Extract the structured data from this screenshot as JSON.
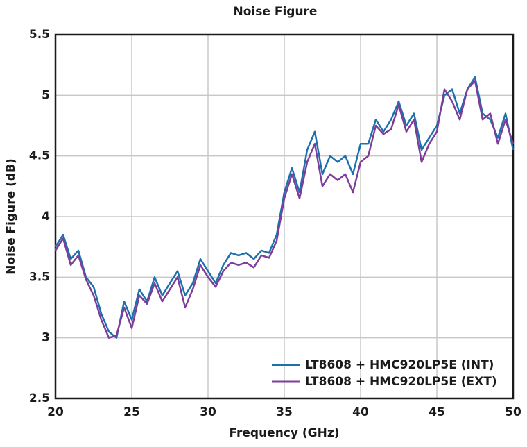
{
  "chart_data": {
    "type": "line",
    "title": "Noise Figure",
    "xlabel": "Frequency (GHz)",
    "ylabel": "Noise Figure (dB)",
    "x": [
      20,
      20.5,
      21,
      21.5,
      22,
      22.5,
      23,
      23.5,
      24,
      24.5,
      25,
      25.5,
      26,
      26.5,
      27,
      27.5,
      28,
      28.5,
      29,
      29.5,
      30,
      30.5,
      31,
      31.5,
      32,
      32.5,
      33,
      33.5,
      34,
      34.5,
      35,
      35.5,
      36,
      36.5,
      37,
      37.5,
      38,
      38.5,
      39,
      39.5,
      40,
      40.5,
      41,
      41.5,
      42,
      42.5,
      43,
      43.5,
      44,
      44.5,
      45,
      45.5,
      46,
      46.5,
      47,
      47.5,
      48,
      48.5,
      49,
      49.5,
      50
    ],
    "series": [
      {
        "name": "LT8608 + HMC920LP5E (INT)",
        "color": "#1b70ad",
        "values": [
          3.75,
          3.85,
          3.65,
          3.72,
          3.5,
          3.42,
          3.2,
          3.05,
          3.0,
          3.3,
          3.15,
          3.4,
          3.3,
          3.5,
          3.35,
          3.45,
          3.55,
          3.35,
          3.45,
          3.65,
          3.55,
          3.45,
          3.6,
          3.7,
          3.68,
          3.7,
          3.65,
          3.72,
          3.7,
          3.85,
          4.2,
          4.4,
          4.2,
          4.55,
          4.7,
          4.35,
          4.5,
          4.45,
          4.5,
          4.35,
          4.6,
          4.6,
          4.8,
          4.7,
          4.8,
          4.95,
          4.75,
          4.85,
          4.55,
          4.65,
          4.75,
          5.0,
          5.05,
          4.85,
          5.05,
          5.15,
          4.85,
          4.8,
          4.65,
          4.85,
          4.55
        ]
      },
      {
        "name": "LT8608 + HMC920LP5E (EXT)",
        "color": "#7e3d98",
        "values": [
          3.72,
          3.82,
          3.6,
          3.68,
          3.48,
          3.35,
          3.15,
          3.0,
          3.02,
          3.25,
          3.08,
          3.35,
          3.28,
          3.45,
          3.3,
          3.4,
          3.5,
          3.25,
          3.4,
          3.6,
          3.5,
          3.42,
          3.55,
          3.62,
          3.6,
          3.62,
          3.58,
          3.68,
          3.66,
          3.8,
          4.15,
          4.35,
          4.15,
          4.45,
          4.6,
          4.25,
          4.35,
          4.3,
          4.35,
          4.2,
          4.45,
          4.5,
          4.75,
          4.68,
          4.72,
          4.92,
          4.7,
          4.8,
          4.45,
          4.6,
          4.7,
          5.05,
          4.95,
          4.8,
          5.05,
          5.12,
          4.8,
          4.85,
          4.6,
          4.8,
          4.6
        ]
      }
    ],
    "xlim": [
      20,
      50
    ],
    "xticks": [
      20,
      25,
      30,
      35,
      40,
      45,
      50
    ],
    "ylim": [
      2.5,
      5.5
    ],
    "yticks": [
      2.5,
      3,
      3.5,
      4,
      4.5,
      5,
      5.5
    ],
    "grid": true,
    "legend": "lower right"
  }
}
